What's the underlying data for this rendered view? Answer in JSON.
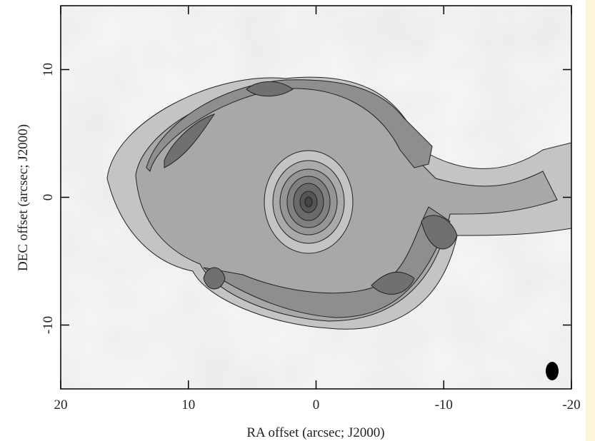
{
  "chart_data": {
    "type": "contour",
    "xlabel": "RA offset (arcsec; J2000)",
    "ylabel": "DEC offset (arcsec; J2000)",
    "xlim": [
      20,
      -20
    ],
    "ylim": [
      -15,
      15
    ],
    "xticks": [
      20,
      10,
      0,
      -10,
      -20
    ],
    "yticks": [
      -10,
      0,
      10
    ]
  }
}
